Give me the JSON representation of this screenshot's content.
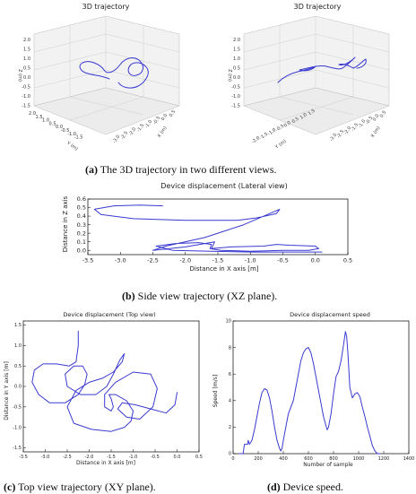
{
  "chart_data": [
    {
      "id": "a",
      "type": "line3d",
      "title": "3D trajectory",
      "xlabel": "X (m)",
      "ylabel": "Y (m)",
      "zlabel": "Z (m)",
      "x_ticks": [
        "-3.0",
        "-2.5",
        "-2.0",
        "-1.5",
        "-1.0",
        "-0.5",
        "0.0",
        "0.5"
      ],
      "y_ticks": [
        "2.0",
        "1.5",
        "1.0",
        "0.5",
        "0.0",
        "-0.5",
        "-1.0",
        "-1.5"
      ],
      "z_ticks": [
        "2.0",
        "1.5",
        "1.0",
        "0.5",
        "0.0",
        "-0.5",
        "-1.0",
        "-1.5"
      ]
    },
    {
      "id": "a2",
      "type": "line3d",
      "title": "3D trajectory",
      "xlabel": "X (m)",
      "ylabel": "Y (m)",
      "zlabel": "Z (m)",
      "x_ticks": [
        "-3.0",
        "-2.5",
        "-2.0",
        "-1.5",
        "-1.0",
        "-0.5",
        "0.0",
        "0.5"
      ],
      "y_ticks": [
        "-2.0",
        "-1.5",
        "-1.0",
        "-0.5",
        "0.0",
        "0.5",
        "1.0",
        "1.5"
      ],
      "z_ticks": [
        "2.0",
        "1.5",
        "1.0",
        "0.5",
        "0.0",
        "-0.5",
        "-1.0",
        "-1.5"
      ]
    },
    {
      "id": "b",
      "type": "line",
      "title": "Device displacement (Lateral view)",
      "xlabel": "Distance in X axis [m]",
      "ylabel": "Distance in Z axis",
      "xlim": [
        -3.5,
        0.5
      ],
      "ylim": [
        -0.05,
        0.6
      ],
      "x_ticks": [
        -3.5,
        -3.0,
        -2.5,
        -2.0,
        -1.5,
        -1.0,
        -0.5,
        0.0,
        0.5
      ],
      "y_ticks": [
        0.0,
        0.1,
        0.2,
        0.3,
        0.4,
        0.5,
        0.6
      ],
      "x_tick_labels": [
        "-3.5",
        "-3.0",
        "-2.5",
        "-2.0",
        "-1.5",
        "-1.0",
        "-0.5",
        "0.0",
        "0.5"
      ],
      "y_tick_labels": [
        "0.0",
        "0.1",
        "0.2",
        "0.3",
        "0.4",
        "0.5",
        "0.6"
      ],
      "x": [
        -2.35,
        -2.7,
        -3.1,
        -3.4,
        -3.3,
        -2.8,
        -2.0,
        -1.2,
        -0.9,
        -0.6,
        -0.55,
        -1.1,
        -1.7,
        -2.3,
        -2.5,
        -2.0,
        -1.55,
        -1.6,
        -1.3,
        -0.8,
        -0.6,
        -0.4,
        0.0,
        0.05,
        -0.1,
        -0.5,
        -1.0,
        -1.45,
        -1.62,
        -1.6,
        -1.8,
        -2.15,
        -2.45,
        -2.2,
        -1.6,
        -1.0,
        -0.4,
        0.1
      ],
      "y": [
        0.52,
        0.53,
        0.52,
        0.48,
        0.42,
        0.37,
        0.35,
        0.35,
        0.38,
        0.43,
        0.48,
        0.3,
        0.15,
        0.05,
        0.0,
        0.04,
        0.1,
        0.02,
        0.04,
        0.05,
        0.07,
        0.06,
        0.05,
        0.02,
        0.0,
        0.0,
        -0.01,
        0.0,
        0.02,
        0.07,
        0.09,
        0.08,
        0.05,
        0.0,
        -0.01,
        -0.02,
        -0.02,
        -0.02
      ]
    },
    {
      "id": "c",
      "type": "line",
      "title": "Device displacement (Top view)",
      "xlabel": "Distance in X axis [m]",
      "ylabel": "Distance in Y axis [m]",
      "xlim": [
        -3.5,
        0.5
      ],
      "ylim": [
        -1.6,
        1.6
      ],
      "x_ticks": [
        -3.5,
        -3.0,
        -2.5,
        -2.0,
        -1.5,
        -1.0,
        -0.5,
        0.0,
        0.5
      ],
      "y_ticks": [
        -1.5,
        -1.0,
        -0.5,
        0.0,
        0.5,
        1.0,
        1.5
      ],
      "x_tick_labels": [
        "-3.5",
        "-3.0",
        "-2.5",
        "-2.0",
        "-1.5",
        "-1.0",
        "-0.5",
        "0.0",
        "0.5"
      ],
      "y_tick_labels": [
        "-1.5",
        "-1.0",
        "-0.5",
        "0.0",
        "0.5",
        "1.0",
        "1.5"
      ],
      "x": [
        -2.25,
        -2.25,
        -2.3,
        -2.45,
        -2.75,
        -3.05,
        -3.25,
        -3.3,
        -3.15,
        -2.9,
        -2.55,
        -2.25,
        -2.1,
        -2.05,
        -2.15,
        -2.35,
        -2.55,
        -2.5,
        -2.2,
        -1.85,
        -1.6,
        -1.45,
        -1.3,
        -1.2,
        -1.25,
        -1.45,
        -1.7,
        -2.0,
        -2.3,
        -2.5,
        -2.35,
        -1.95,
        -1.5,
        -1.2,
        -1.05,
        -1.0,
        -1.15,
        -1.4,
        -1.55,
        -1.5,
        -1.45,
        -1.5,
        -1.65,
        -1.65,
        -1.4,
        -1.0,
        -0.6,
        -0.45,
        -0.55,
        -0.85,
        -1.15,
        -1.35,
        -1.25,
        -0.95,
        -0.6,
        -0.25,
        -0.05,
        0.0
      ],
      "y": [
        1.35,
        1.0,
        0.6,
        0.5,
        0.55,
        0.55,
        0.4,
        0.1,
        -0.2,
        -0.4,
        -0.4,
        -0.2,
        0.05,
        0.3,
        0.5,
        0.5,
        0.3,
        0.0,
        -0.2,
        -0.2,
        0.0,
        0.3,
        0.65,
        0.8,
        0.6,
        0.35,
        0.2,
        0.1,
        -0.1,
        -0.5,
        -0.9,
        -1.05,
        -1.1,
        -1.0,
        -0.85,
        -0.6,
        -0.35,
        -0.2,
        -0.2,
        -0.3,
        -0.5,
        -0.6,
        -0.5,
        -0.2,
        0.1,
        0.35,
        0.3,
        -0.05,
        -0.5,
        -0.8,
        -0.75,
        -0.55,
        -0.4,
        -0.45,
        -0.55,
        -0.65,
        -0.45,
        -0.15
      ]
    },
    {
      "id": "d",
      "type": "line",
      "title": "Device displacement speed",
      "xlabel": "Number of sample",
      "ylabel": "Speed [m/s]",
      "xlim": [
        0,
        1400
      ],
      "ylim": [
        0,
        10
      ],
      "x_ticks": [
        0,
        200,
        400,
        600,
        800,
        1000,
        1200,
        1400
      ],
      "y_ticks": [
        0,
        2,
        4,
        6,
        8,
        10
      ],
      "x_tick_labels": [
        "0",
        "200",
        "400",
        "600",
        "800",
        "1000",
        "1200",
        "1400"
      ],
      "y_tick_labels": [
        "0",
        "2",
        "4",
        "6",
        "8",
        "10"
      ],
      "x": [
        50,
        60,
        80,
        90,
        100,
        115,
        120,
        130,
        150,
        170,
        190,
        210,
        230,
        250,
        270,
        290,
        310,
        330,
        350,
        370,
        380,
        390,
        400,
        420,
        440,
        460,
        480,
        500,
        520,
        540,
        560,
        580,
        600,
        620,
        640,
        660,
        680,
        700,
        720,
        740,
        750,
        760,
        780,
        800,
        820,
        840,
        860,
        880,
        895,
        905,
        915,
        930,
        950,
        970,
        990,
        1010,
        1030,
        1050,
        1070,
        1090,
        1110,
        1130,
        1150,
        1160,
        1170
      ],
      "y": [
        0.0,
        0.0,
        0.0,
        0.7,
        0.7,
        0.7,
        1.0,
        0.7,
        1.0,
        1.8,
        2.8,
        3.8,
        4.6,
        4.9,
        4.8,
        4.2,
        3.2,
        2.0,
        1.0,
        0.4,
        0.2,
        0.4,
        1.0,
        2.0,
        3.0,
        3.5,
        4.0,
        5.0,
        6.0,
        7.0,
        7.6,
        7.9,
        8.0,
        7.6,
        6.8,
        5.8,
        4.8,
        3.8,
        2.8,
        2.1,
        1.8,
        2.0,
        3.0,
        4.5,
        5.8,
        6.2,
        7.0,
        8.2,
        9.2,
        8.8,
        7.5,
        5.0,
        4.2,
        4.5,
        4.6,
        4.3,
        3.5,
        2.8,
        2.0,
        1.3,
        0.6,
        0.2,
        0.0,
        0.0,
        0.0
      ]
    }
  ],
  "captions": {
    "a_label": "(a)",
    "a_text": " The 3D trajectory in two different views.",
    "b_label": "(b)",
    "b_text": " Side view trajectory (XZ plane).",
    "c_label": "(c)",
    "c_text": " Top view trajectory (XY plane).",
    "d_label": "(d)",
    "d_text": " Device speed."
  },
  "colors": {
    "line": "#3a3ad0",
    "frame": "#000000",
    "pane": "#f2f2f2"
  }
}
